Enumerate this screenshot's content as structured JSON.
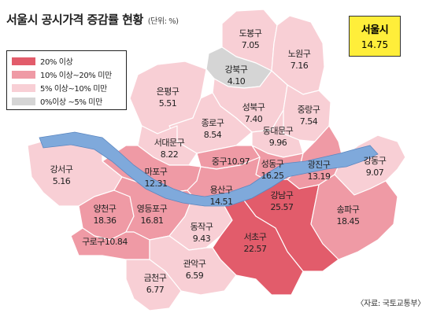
{
  "title": "서울시 공시가격 증감률 현황",
  "unit": "(단위: %)",
  "seoul": {
    "name": "서울시",
    "value": "14.75"
  },
  "colors": {
    "over20": "#e25c6b",
    "from10to20": "#ef9aa5",
    "from5to10": "#f8cfd5",
    "under5": "#d5d5d5",
    "river": "#7fa9db",
    "seoul_box": "#ffee3a"
  },
  "legend": [
    {
      "label": "20% 이상",
      "color": "#e25c6b"
    },
    {
      "label": "10% 이상~20% 미만",
      "color": "#ef9aa5"
    },
    {
      "label": "5% 이상~10% 미만",
      "color": "#f8cfd5"
    },
    {
      "label": "0%이상 ~5% 미만",
      "color": "#d5d5d5"
    }
  ],
  "districts": [
    {
      "name": "도봉구",
      "value": "7.05",
      "tier": "from5to10"
    },
    {
      "name": "노원구",
      "value": "7.16",
      "tier": "from5to10"
    },
    {
      "name": "강북구",
      "value": "4.10",
      "tier": "under5"
    },
    {
      "name": "은평구",
      "value": "5.51",
      "tier": "from5to10"
    },
    {
      "name": "성북구",
      "value": "7.40",
      "tier": "from5to10"
    },
    {
      "name": "중랑구",
      "value": "7.54",
      "tier": "from5to10"
    },
    {
      "name": "종로구",
      "value": "8.54",
      "tier": "from5to10"
    },
    {
      "name": "동대문구",
      "value": "9.96",
      "tier": "from5to10"
    },
    {
      "name": "서대문구",
      "value": "8.22",
      "tier": "from5to10"
    },
    {
      "name": "중구",
      "value": "10.97",
      "tier": "from10to20"
    },
    {
      "name": "성동구",
      "value": "16.25",
      "tier": "from10to20"
    },
    {
      "name": "광진구",
      "value": "13.19",
      "tier": "from10to20"
    },
    {
      "name": "강동구",
      "value": "9.07",
      "tier": "from5to10"
    },
    {
      "name": "마포구",
      "value": "12.31",
      "tier": "from10to20"
    },
    {
      "name": "강서구",
      "value": "5.16",
      "tier": "from5to10"
    },
    {
      "name": "용산구",
      "value": "14.51",
      "tier": "from10to20"
    },
    {
      "name": "강남구",
      "value": "25.57",
      "tier": "over20"
    },
    {
      "name": "송파구",
      "value": "18.45",
      "tier": "from10to20"
    },
    {
      "name": "양천구",
      "value": "18.36",
      "tier": "from10to20"
    },
    {
      "name": "영등포구",
      "value": "16.81",
      "tier": "from10to20"
    },
    {
      "name": "동작구",
      "value": "9.43",
      "tier": "from5to10"
    },
    {
      "name": "서초구",
      "value": "22.57",
      "tier": "over20"
    },
    {
      "name": "구로구",
      "value": "10.84",
      "tier": "from10to20"
    },
    {
      "name": "관악구",
      "value": "6.59",
      "tier": "from5to10"
    },
    {
      "name": "금천구",
      "value": "6.77",
      "tier": "from5to10"
    }
  ],
  "source": "〈자료: 국토교통부〉"
}
